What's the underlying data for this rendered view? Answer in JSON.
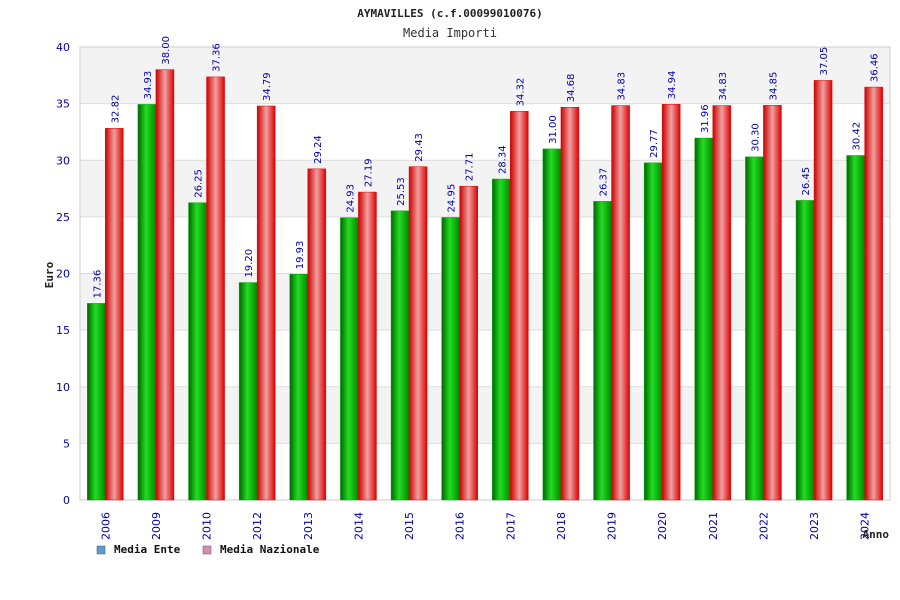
{
  "chart_data": {
    "type": "bar",
    "title": "AYMAVILLES (c.f.00099010076)",
    "subtitle": "Media Importi",
    "xlabel": "Anno",
    "ylabel": "Euro",
    "ylim": [
      0,
      40
    ],
    "yticks": [
      0,
      5,
      10,
      15,
      20,
      25,
      30,
      35,
      40
    ],
    "grid": true,
    "legend_position": "bottom-left",
    "categories": [
      "2006",
      "2009",
      "2010",
      "2012",
      "2013",
      "2014",
      "2015",
      "2016",
      "2017",
      "2018",
      "2019",
      "2020",
      "2021",
      "2022",
      "2023",
      "2024"
    ],
    "series": [
      {
        "name": "Media Ente",
        "color": "#00aa00",
        "legend_color": "#5b9bd5",
        "values": [
          17.36,
          34.93,
          26.25,
          19.2,
          19.93,
          24.93,
          25.53,
          24.95,
          28.34,
          31.0,
          26.37,
          29.77,
          31.96,
          30.3,
          26.45,
          30.42
        ],
        "labels": [
          "17.36",
          "34.93",
          "26.25",
          "19.20",
          "19.93",
          "24.93",
          "25.53",
          "24.95",
          "28.34",
          "31.00",
          "26.37",
          "29.77",
          "31.96",
          "30.30",
          "26.45",
          "30.42"
        ]
      },
      {
        "name": "Media Nazionale",
        "color": "#dd0000",
        "legend_color": "#d98cb3",
        "values": [
          32.82,
          38.0,
          37.36,
          34.79,
          29.24,
          27.19,
          29.43,
          27.71,
          34.32,
          34.68,
          34.83,
          34.94,
          34.83,
          34.85,
          37.05,
          36.46
        ],
        "labels": [
          "32.82",
          "38.00",
          "37.36",
          "34.79",
          "29.24",
          "27.19",
          "29.43",
          "27.71",
          "34.32",
          "34.68",
          "34.83",
          "34.94",
          "34.83",
          "34.85",
          "37.05",
          "36.46"
        ]
      }
    ]
  }
}
